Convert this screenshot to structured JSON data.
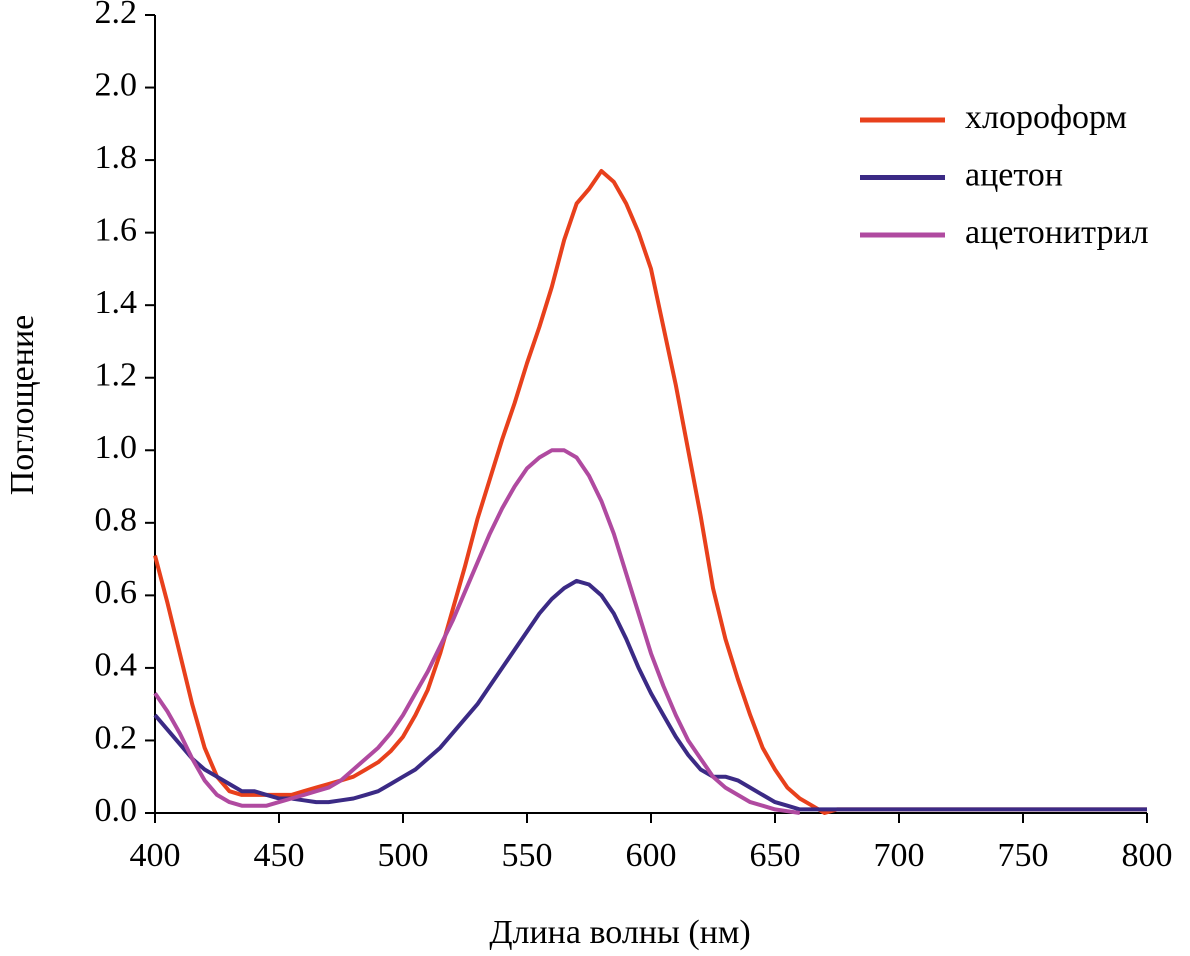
{
  "chart_data": {
    "type": "line",
    "x_label": "Длина волны (нм)",
    "y_label": "Поглощение",
    "x": [
      400,
      405,
      410,
      415,
      420,
      425,
      430,
      435,
      440,
      445,
      450,
      455,
      460,
      465,
      470,
      475,
      480,
      485,
      490,
      495,
      500,
      505,
      510,
      515,
      520,
      525,
      530,
      535,
      540,
      545,
      550,
      555,
      560,
      565,
      570,
      575,
      580,
      585,
      590,
      595,
      600,
      605,
      610,
      615,
      620,
      625,
      630,
      635,
      640,
      645,
      650,
      655,
      660,
      665,
      670,
      675,
      680,
      685,
      690,
      695,
      700,
      705,
      710,
      715,
      720,
      725,
      730,
      735,
      740,
      745,
      750,
      755,
      760,
      765,
      770,
      775,
      780,
      785,
      790,
      795,
      800
    ],
    "series": [
      {
        "name": "хлороформ",
        "color": "#e8401c",
        "values": [
          0.71,
          0.58,
          0.44,
          0.3,
          0.18,
          0.1,
          0.06,
          0.05,
          0.05,
          0.05,
          0.05,
          0.05,
          0.06,
          0.07,
          0.08,
          0.09,
          0.1,
          0.12,
          0.14,
          0.17,
          0.21,
          0.27,
          0.34,
          0.44,
          0.56,
          0.68,
          0.81,
          0.92,
          1.03,
          1.13,
          1.24,
          1.34,
          1.45,
          1.58,
          1.68,
          1.72,
          1.77,
          1.74,
          1.68,
          1.6,
          1.5,
          1.34,
          1.18,
          1.0,
          0.82,
          0.62,
          0.48,
          0.37,
          0.27,
          0.18,
          0.12,
          0.07,
          0.04,
          0.02,
          0.0,
          0.01,
          0.01,
          0.01,
          0.01,
          0.01,
          0.01,
          0.01,
          0.01,
          0.01,
          0.01,
          0.01,
          0.01,
          0.01,
          0.01,
          0.01,
          0.01,
          0.01,
          0.01,
          0.01,
          0.01,
          0.01,
          0.01,
          0.01,
          0.01,
          0.01,
          0.01
        ]
      },
      {
        "name": "ацетон",
        "color": "#3b2a85",
        "values": [
          0.27,
          0.23,
          0.19,
          0.15,
          0.12,
          0.1,
          0.08,
          0.06,
          0.06,
          0.05,
          0.04,
          0.04,
          0.035,
          0.03,
          0.03,
          0.035,
          0.04,
          0.05,
          0.06,
          0.08,
          0.1,
          0.12,
          0.15,
          0.18,
          0.22,
          0.26,
          0.3,
          0.35,
          0.4,
          0.45,
          0.5,
          0.55,
          0.59,
          0.62,
          0.64,
          0.63,
          0.6,
          0.55,
          0.48,
          0.4,
          0.33,
          0.27,
          0.21,
          0.16,
          0.12,
          0.1,
          0.1,
          0.09,
          0.07,
          0.05,
          0.03,
          0.02,
          0.01,
          0.01,
          0.01,
          0.01,
          0.01,
          0.01,
          0.01,
          0.01,
          0.01,
          0.01,
          0.01,
          0.01,
          0.01,
          0.01,
          0.01,
          0.01,
          0.01,
          0.01,
          0.01,
          0.01,
          0.01,
          0.01,
          0.01,
          0.01,
          0.01,
          0.01,
          0.01,
          0.01,
          0.01
        ]
      },
      {
        "name": "ацетонитрил",
        "color": "#b04aa0",
        "values": [
          0.33,
          0.28,
          0.22,
          0.15,
          0.09,
          0.05,
          0.03,
          0.02,
          0.02,
          0.02,
          0.03,
          0.04,
          0.05,
          0.06,
          0.07,
          0.09,
          0.12,
          0.15,
          0.18,
          0.22,
          0.27,
          0.33,
          0.39,
          0.46,
          0.53,
          0.61,
          0.69,
          0.77,
          0.84,
          0.9,
          0.95,
          0.98,
          1.0,
          1.0,
          0.98,
          0.93,
          0.86,
          0.77,
          0.66,
          0.55,
          0.44,
          0.35,
          0.27,
          0.2,
          0.15,
          0.1,
          0.07,
          0.05,
          0.03,
          0.02,
          0.01,
          0.005,
          0.0,
          null,
          null,
          null,
          null,
          null,
          null,
          null,
          null,
          null,
          null,
          null,
          null,
          null,
          null,
          null,
          null,
          null,
          null,
          null,
          null,
          null,
          null,
          null,
          null,
          null,
          null,
          null,
          null
        ]
      }
    ],
    "xlim": [
      400,
      800
    ],
    "xticks": [
      400,
      450,
      500,
      550,
      600,
      650,
      700,
      750,
      800
    ],
    "ylim": [
      0,
      2.2
    ],
    "yticks": [
      {
        "value": 0,
        "label": "0.0"
      },
      0.2,
      0.4,
      0.6,
      0.8,
      {
        "value": 1,
        "label": "1.0"
      },
      1.2,
      1.4,
      1.6,
      1.8,
      {
        "value": 2,
        "label": "2.0"
      },
      2.2
    ],
    "grid": false,
    "legend": "upper right"
  }
}
